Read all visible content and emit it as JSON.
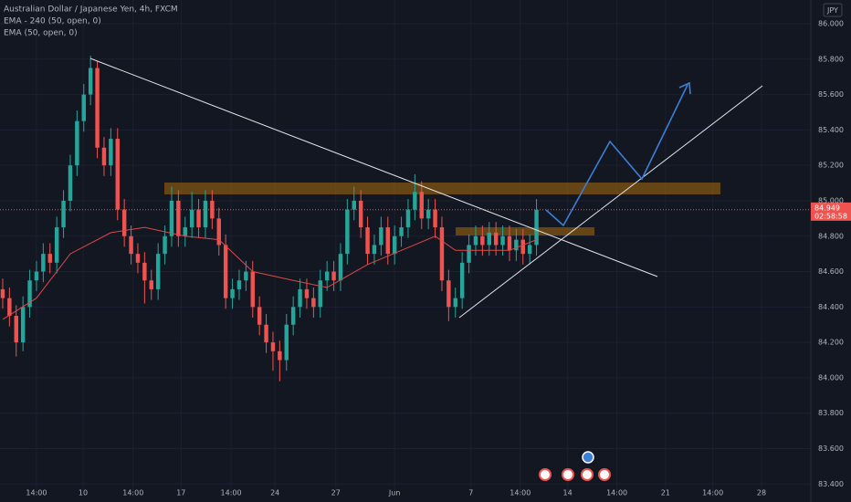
{
  "chart_data": {
    "type": "candlestick",
    "title": "Australian Dollar / Japanese Yen, 4h, FXCM",
    "indicators": [
      "EMA - 240 (50, open, 0)",
      "EMA (50, open, 0)"
    ],
    "currency": "JPY",
    "price_label": "84.949",
    "countdown": "02:58:58",
    "up_color": "#26a69a",
    "down_color": "#ef5350",
    "open": [
      84.5,
      84.45,
      84.35,
      84.2,
      84.4,
      84.55,
      84.6,
      84.7,
      84.65,
      84.85,
      85.0,
      85.2,
      85.45,
      85.6,
      85.75,
      85.3,
      85.2,
      85.35,
      84.95,
      84.8,
      84.7,
      84.65,
      84.55,
      84.5,
      84.7,
      84.8,
      85.0,
      84.8,
      84.85,
      84.95,
      84.85,
      85.0,
      84.9,
      84.75,
      84.45,
      84.5,
      84.55,
      84.6,
      84.4,
      84.3,
      84.2,
      84.15,
      84.1,
      84.3,
      84.4,
      84.5,
      84.45,
      84.4,
      84.55,
      84.6,
      84.55,
      84.7,
      84.95,
      85.0,
      84.85,
      84.7,
      84.75,
      84.85,
      84.7,
      84.8,
      84.85,
      84.95,
      85.05,
      84.9,
      84.95,
      84.85,
      84.55,
      84.4,
      84.45,
      84.65,
      84.75,
      84.8,
      84.75,
      84.82,
      84.75,
      84.8,
      84.72,
      84.78,
      84.7,
      84.75
    ],
    "high": [
      84.56,
      84.51,
      84.41,
      84.46,
      84.61,
      84.66,
      84.76,
      84.76,
      84.91,
      85.06,
      85.26,
      85.51,
      85.66,
      85.82,
      85.79,
      85.36,
      85.41,
      85.41,
      85.01,
      84.86,
      84.76,
      84.71,
      84.61,
      84.76,
      84.86,
      85.08,
      85.06,
      84.91,
      85.05,
      85.01,
      85.06,
      85.06,
      84.96,
      84.81,
      84.56,
      84.61,
      84.66,
      84.66,
      84.46,
      84.36,
      84.26,
      84.21,
      84.36,
      84.46,
      84.56,
      84.56,
      84.51,
      84.61,
      84.66,
      84.66,
      84.76,
      85.01,
      85.08,
      85.06,
      84.91,
      84.81,
      84.91,
      84.91,
      84.86,
      84.91,
      85.01,
      85.15,
      85.11,
      85.01,
      85.01,
      84.91,
      84.61,
      84.51,
      84.71,
      84.81,
      84.86,
      84.86,
      84.88,
      84.88,
      84.86,
      84.86,
      84.84,
      84.84,
      84.81,
      85.01
    ],
    "low": [
      84.39,
      84.29,
      84.12,
      84.15,
      84.34,
      84.49,
      84.54,
      84.59,
      84.59,
      84.79,
      84.94,
      85.14,
      85.39,
      85.54,
      85.24,
      85.14,
      85.14,
      84.89,
      84.74,
      84.64,
      84.59,
      84.42,
      84.44,
      84.44,
      84.64,
      84.74,
      84.74,
      84.74,
      84.79,
      84.79,
      84.79,
      84.84,
      84.69,
      84.39,
      84.39,
      84.44,
      84.49,
      84.34,
      84.24,
      84.14,
      84.04,
      83.98,
      84.04,
      84.24,
      84.34,
      84.39,
      84.34,
      84.34,
      84.49,
      84.49,
      84.49,
      84.64,
      84.89,
      84.79,
      84.64,
      84.64,
      84.69,
      84.64,
      84.64,
      84.74,
      84.79,
      84.89,
      84.84,
      84.84,
      84.79,
      84.49,
      84.32,
      84.34,
      84.39,
      84.59,
      84.69,
      84.69,
      84.69,
      84.69,
      84.69,
      84.66,
      84.66,
      84.64,
      84.64,
      84.69
    ],
    "close": [
      84.45,
      84.35,
      84.2,
      84.4,
      84.55,
      84.6,
      84.7,
      84.65,
      84.85,
      85.0,
      85.2,
      85.45,
      85.6,
      85.75,
      85.3,
      85.2,
      85.35,
      84.95,
      84.8,
      84.7,
      84.65,
      84.55,
      84.5,
      84.7,
      84.8,
      85.0,
      84.8,
      84.85,
      84.95,
      84.85,
      85.0,
      84.9,
      84.75,
      84.45,
      84.5,
      84.55,
      84.6,
      84.4,
      84.3,
      84.2,
      84.15,
      84.1,
      84.3,
      84.4,
      84.5,
      84.45,
      84.4,
      84.55,
      84.6,
      84.55,
      84.7,
      84.95,
      85.0,
      84.85,
      84.7,
      84.75,
      84.85,
      84.7,
      84.8,
      84.85,
      84.95,
      85.05,
      84.9,
      84.95,
      84.85,
      84.55,
      84.4,
      84.45,
      84.65,
      84.75,
      84.8,
      84.75,
      84.82,
      84.75,
      84.8,
      84.72,
      84.78,
      84.7,
      84.75,
      84.949
    ],
    "ema": {
      "color": "#e04848",
      "x": [
        0,
        5,
        10,
        16,
        21,
        27,
        32,
        37,
        43,
        48,
        54,
        59,
        64,
        67,
        75,
        79
      ],
      "values": [
        84.33,
        84.45,
        84.7,
        84.82,
        84.85,
        84.8,
        84.78,
        84.6,
        84.55,
        84.51,
        84.64,
        84.72,
        84.8,
        84.72,
        84.72,
        84.78
      ]
    },
    "xlim": [
      -0.4,
      119.6
    ],
    "xticks": [
      {
        "value": 5,
        "label": "14:00"
      },
      {
        "value": 11.9,
        "label": "10"
      },
      {
        "value": 19.3,
        "label": "14:00"
      },
      {
        "value": 26.4,
        "label": "17"
      },
      {
        "value": 33.8,
        "label": "14:00"
      },
      {
        "value": 40.3,
        "label": "24"
      },
      {
        "value": 49.3,
        "label": "27"
      },
      {
        "value": 58,
        "label": "Jun"
      },
      {
        "value": 69.3,
        "label": "7"
      },
      {
        "value": 76.6,
        "label": "14:00"
      },
      {
        "value": 83.6,
        "label": "14"
      },
      {
        "value": 90.9,
        "label": "14:00"
      },
      {
        "value": 98.1,
        "label": "21"
      },
      {
        "value": 105.1,
        "label": "14:00"
      },
      {
        "value": 112.3,
        "label": "28"
      }
    ],
    "ylim": [
      83.35,
      86.134
    ],
    "yticks": [
      {
        "value": 83.4,
        "label": "83.400"
      },
      {
        "value": 83.6,
        "label": "83.600"
      },
      {
        "value": 83.8,
        "label": "83.800"
      },
      {
        "value": 84,
        "label": "84.000"
      },
      {
        "value": 84.2,
        "label": "84.200"
      },
      {
        "value": 84.4,
        "label": "84.400"
      },
      {
        "value": 84.6,
        "label": "84.600"
      },
      {
        "value": 84.8,
        "label": "84.800"
      },
      {
        "value": 85,
        "label": "85.000"
      },
      {
        "value": 85.2,
        "label": "85.200"
      },
      {
        "value": 85.4,
        "label": "85.400"
      },
      {
        "value": 85.6,
        "label": "85.600"
      },
      {
        "value": 85.8,
        "label": "85.800"
      },
      {
        "value": 86,
        "label": "86.000"
      }
    ],
    "grid": true
  }
}
